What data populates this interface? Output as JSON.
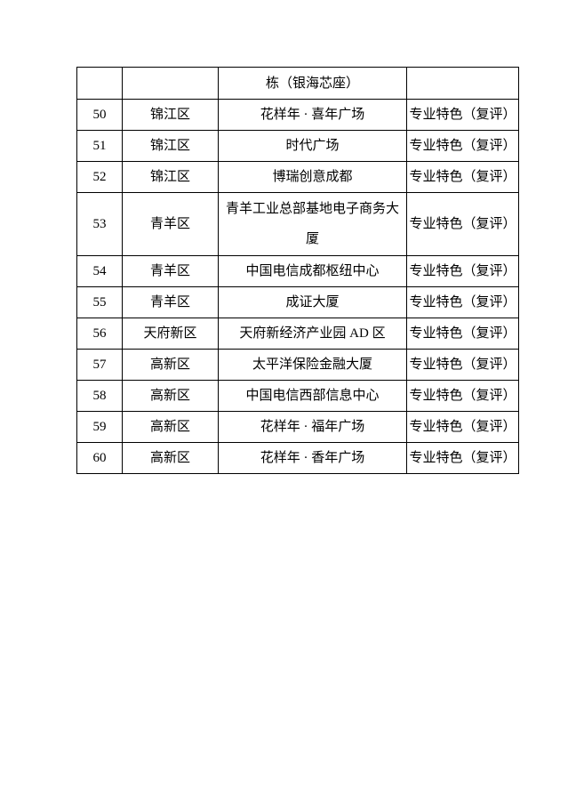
{
  "page": {
    "background": "#ffffff",
    "text_color": "#000000",
    "border_color": "#000000"
  },
  "table": {
    "rows": [
      {
        "num": "",
        "district": "",
        "building": "栋（银海芯座）",
        "category": ""
      },
      {
        "num": "50",
        "district": "锦江区",
        "building": "花样年 · 喜年广场",
        "category": "专业特色（复评）"
      },
      {
        "num": "51",
        "district": "锦江区",
        "building": "时代广场",
        "category": "专业特色（复评）"
      },
      {
        "num": "52",
        "district": "锦江区",
        "building": "博瑞创意成都",
        "category": "专业特色（复评）"
      },
      {
        "num": "53",
        "district": "青羊区",
        "building": "青羊工业总部基地电子商务大\n厦",
        "category": "专业特色（复评）"
      },
      {
        "num": "54",
        "district": "青羊区",
        "building": "中国电信成都枢纽中心",
        "category": "专业特色（复评）"
      },
      {
        "num": "55",
        "district": "青羊区",
        "building": "成证大厦",
        "category": "专业特色（复评）"
      },
      {
        "num": "56",
        "district": "天府新区",
        "building": "天府新经济产业园 AD 区",
        "category": "专业特色（复评）"
      },
      {
        "num": "57",
        "district": "高新区",
        "building": "太平洋保险金融大厦",
        "category": "专业特色（复评）"
      },
      {
        "num": "58",
        "district": "高新区",
        "building": "中国电信西部信息中心",
        "category": "专业特色（复评）"
      },
      {
        "num": "59",
        "district": "高新区",
        "building": "花样年 · 福年广场",
        "category": "专业特色（复评）"
      },
      {
        "num": "60",
        "district": "高新区",
        "building": "花样年 · 香年广场",
        "category": "专业特色（复评）"
      }
    ]
  }
}
